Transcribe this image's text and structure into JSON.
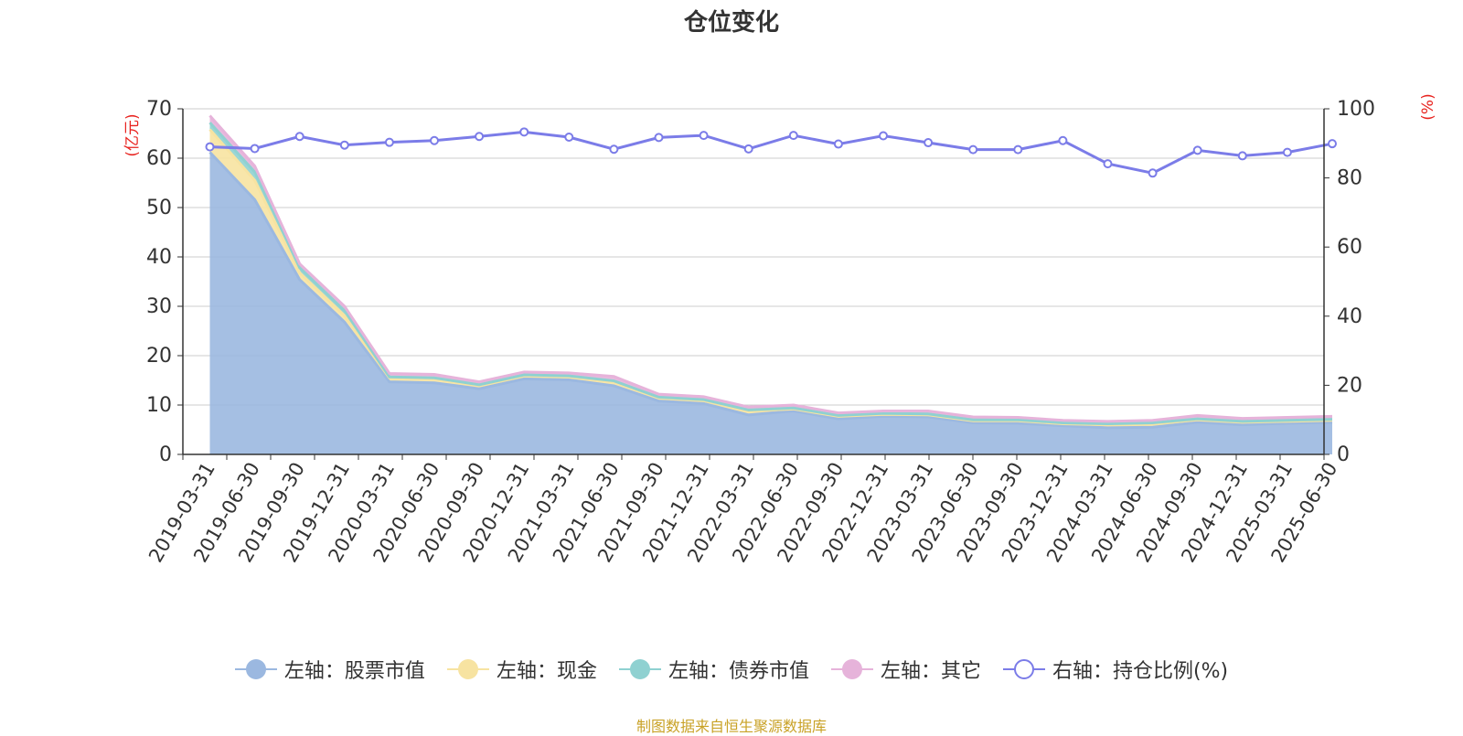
{
  "chart_data": {
    "type": "area",
    "title": "仓位变化",
    "source": "制图数据来自恒生聚源数据库",
    "left_axis": {
      "unit": "(亿元)",
      "ylim": [
        0,
        70
      ],
      "ticks": [
        0,
        10,
        20,
        30,
        40,
        50,
        60,
        70
      ]
    },
    "right_axis": {
      "unit": "(%)",
      "ylim": [
        0,
        100
      ],
      "ticks": [
        0,
        20,
        40,
        60,
        80,
        100
      ]
    },
    "categories": [
      "2019-03-31",
      "2019-06-30",
      "2019-09-30",
      "2019-12-31",
      "2020-03-31",
      "2020-06-30",
      "2020-09-30",
      "2020-12-31",
      "2021-03-31",
      "2021-06-30",
      "2021-09-30",
      "2021-12-31",
      "2022-03-31",
      "2022-06-30",
      "2022-09-30",
      "2022-12-31",
      "2023-03-31",
      "2023-06-30",
      "2023-09-30",
      "2023-12-31",
      "2024-03-31",
      "2024-06-30",
      "2024-09-30",
      "2024-12-31",
      "2025-03-31",
      "2025-06-30"
    ],
    "series": [
      {
        "name": "左轴：股票市值",
        "axis": "left",
        "kind": "stacked-area",
        "color": "#9bb8e0",
        "values": [
          61.2,
          51.6,
          35.4,
          26.8,
          14.7,
          14.5,
          13.3,
          15.3,
          15.1,
          13.9,
          10.8,
          10.3,
          8.0,
          8.8,
          7.2,
          7.7,
          7.6,
          6.4,
          6.3,
          5.8,
          5.4,
          5.5,
          6.5,
          6.0,
          6.3,
          6.5
        ]
      },
      {
        "name": "左轴：现金",
        "axis": "left",
        "kind": "stacked-area",
        "color": "#f7e3a1",
        "values": [
          4.6,
          3.9,
          1.4,
          1.3,
          0.8,
          0.8,
          0.6,
          0.6,
          0.6,
          0.8,
          0.6,
          0.6,
          0.8,
          0.4,
          0.5,
          0.4,
          0.4,
          0.4,
          0.5,
          0.4,
          0.6,
          0.7,
          0.5,
          0.5,
          0.4,
          0.4
        ]
      },
      {
        "name": "左轴：债券市值",
        "axis": "left",
        "kind": "stacked-area",
        "color": "#8fd1d1",
        "values": [
          1.4,
          1.7,
          1.0,
          1.0,
          0.2,
          0.2,
          0.2,
          0.2,
          0.2,
          0.2,
          0.2,
          0.2,
          0.2,
          0.2,
          0.2,
          0.2,
          0.2,
          0.2,
          0.2,
          0.2,
          0.2,
          0.2,
          0.2,
          0.2,
          0.2,
          0.2
        ]
      },
      {
        "name": "左轴：其它",
        "axis": "left",
        "kind": "stacked-area",
        "color": "#e6b3da",
        "values": [
          1.4,
          1.2,
          0.8,
          0.9,
          0.7,
          0.7,
          0.6,
          0.6,
          0.6,
          0.9,
          0.6,
          0.6,
          0.6,
          0.6,
          0.5,
          0.5,
          0.6,
          0.6,
          0.5,
          0.5,
          0.5,
          0.5,
          0.7,
          0.6,
          0.6,
          0.6
        ]
      },
      {
        "name": "右轴：持仓比例(%)",
        "axis": "right",
        "kind": "line",
        "color": "#7b7ce8",
        "values": [
          89.0,
          88.5,
          92.0,
          89.5,
          90.3,
          90.8,
          92.0,
          93.3,
          91.8,
          88.3,
          91.7,
          92.3,
          88.4,
          92.3,
          89.8,
          92.2,
          90.2,
          88.2,
          88.2,
          90.8,
          84.1,
          81.4,
          88.0,
          86.4,
          87.4,
          89.9
        ]
      }
    ]
  }
}
